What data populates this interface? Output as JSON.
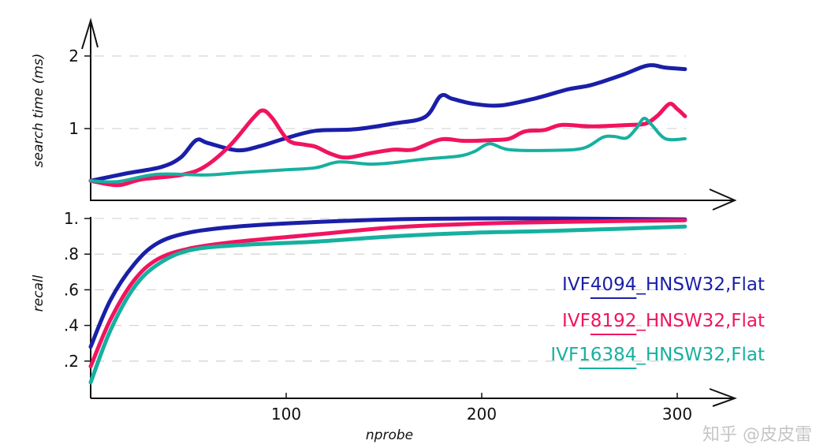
{
  "chart_data": [
    {
      "type": "line",
      "title": "",
      "xlabel": "",
      "ylabel": "search time (ms)",
      "xlim": [
        0,
        304
      ],
      "ylim": [
        0,
        2.2
      ],
      "yticks": [
        {
          "v": 1,
          "label": "1"
        },
        {
          "v": 2,
          "label": "2"
        }
      ],
      "grid": true,
      "series": [
        {
          "name": "IVF4094_HNSW32,Flat",
          "color": "#1a1fa8",
          "x": [
            0,
            18,
            36,
            46,
            54,
            60,
            75,
            87,
            99,
            115,
            135,
            155,
            171,
            179,
            185,
            196,
            210,
            228,
            244,
            256,
            272,
            285,
            294,
            304
          ],
          "y": [
            0.28,
            0.38,
            0.47,
            0.6,
            0.84,
            0.8,
            0.7,
            0.76,
            0.86,
            0.97,
            0.99,
            1.07,
            1.16,
            1.45,
            1.41,
            1.34,
            1.32,
            1.42,
            1.54,
            1.6,
            1.74,
            1.87,
            1.84,
            1.82
          ]
        },
        {
          "name": "IVF8192_HNSW32,Flat",
          "color": "#f0145f",
          "x": [
            0,
            14,
            26,
            46,
            58,
            71,
            83,
            88,
            93,
            101,
            109,
            115,
            123,
            131,
            143,
            155,
            165,
            179,
            191,
            204,
            214,
            222,
            232,
            241,
            256,
            276,
            284,
            290,
            296,
            300,
            304
          ],
          "y": [
            0.28,
            0.22,
            0.3,
            0.36,
            0.47,
            0.76,
            1.14,
            1.25,
            1.14,
            0.84,
            0.78,
            0.75,
            0.65,
            0.6,
            0.66,
            0.71,
            0.71,
            0.85,
            0.83,
            0.84,
            0.86,
            0.96,
            0.98,
            1.05,
            1.03,
            1.05,
            1.07,
            1.18,
            1.34,
            1.27,
            1.17
          ]
        },
        {
          "name": "IVF16384_HNSW32,Flat",
          "color": "#16b0a0",
          "x": [
            0,
            14,
            34,
            58,
            75,
            99,
            115,
            127,
            143,
            155,
            171,
            188,
            196,
            204,
            214,
            236,
            252,
            262,
            268,
            274,
            279,
            283,
            287,
            294,
            304
          ],
          "y": [
            0.28,
            0.27,
            0.37,
            0.36,
            0.39,
            0.43,
            0.46,
            0.54,
            0.51,
            0.53,
            0.58,
            0.62,
            0.68,
            0.79,
            0.71,
            0.7,
            0.73,
            0.88,
            0.89,
            0.87,
            1.0,
            1.14,
            1.05,
            0.86,
            0.86
          ]
        }
      ]
    },
    {
      "type": "line",
      "title": "",
      "xlabel": "nprobe",
      "ylabel": "recall",
      "xlim": [
        0,
        304
      ],
      "ylim": [
        0,
        1.0
      ],
      "xticks": [
        {
          "v": 100,
          "label": "100"
        },
        {
          "v": 200,
          "label": "200"
        },
        {
          "v": 300,
          "label": "300"
        }
      ],
      "yticks": [
        {
          "v": 0.2,
          "label": ".2"
        },
        {
          "v": 0.4,
          "label": ".4"
        },
        {
          "v": 0.6,
          "label": ".6"
        },
        {
          "v": 0.8,
          "label": ".8"
        },
        {
          "v": 1.0,
          "label": "1."
        }
      ],
      "grid": true,
      "legend_placement": "right",
      "series": [
        {
          "name": "IVF4094_HNSW32,Flat",
          "color": "#1a1fa8",
          "x": [
            0,
            10,
            22,
            34,
            50,
            75,
            115,
            155,
            196,
            236,
            304
          ],
          "y": [
            0.28,
            0.54,
            0.74,
            0.86,
            0.92,
            0.955,
            0.98,
            0.995,
            1.0,
            1.0,
            0.995
          ]
        },
        {
          "name": "IVF8192_HNSW32,Flat",
          "color": "#f0145f",
          "x": [
            0,
            10,
            22,
            34,
            50,
            75,
            115,
            155,
            196,
            236,
            304
          ],
          "y": [
            0.17,
            0.43,
            0.65,
            0.77,
            0.83,
            0.87,
            0.91,
            0.95,
            0.97,
            0.98,
            0.99
          ]
        },
        {
          "name": "IVF16384_HNSW32,Flat",
          "color": "#16b0a0",
          "x": [
            0,
            10,
            22,
            34,
            50,
            75,
            115,
            155,
            196,
            236,
            304
          ],
          "y": [
            0.08,
            0.37,
            0.61,
            0.74,
            0.82,
            0.85,
            0.87,
            0.9,
            0.92,
            0.93,
            0.955
          ]
        }
      ]
    }
  ],
  "legend": [
    {
      "prefix": "IVF",
      "num": "4094",
      "suffix": "_HNSW32,Flat",
      "color": "#1a1fa8"
    },
    {
      "prefix": "IVF",
      "num": "8192",
      "suffix": "_HNSW32,Flat",
      "color": "#f0145f"
    },
    {
      "prefix": "IVF",
      "num": "16384",
      "suffix": "_HNSW32,Flat",
      "color": "#16b0a0"
    }
  ],
  "watermark": "知乎 @皮皮雷"
}
